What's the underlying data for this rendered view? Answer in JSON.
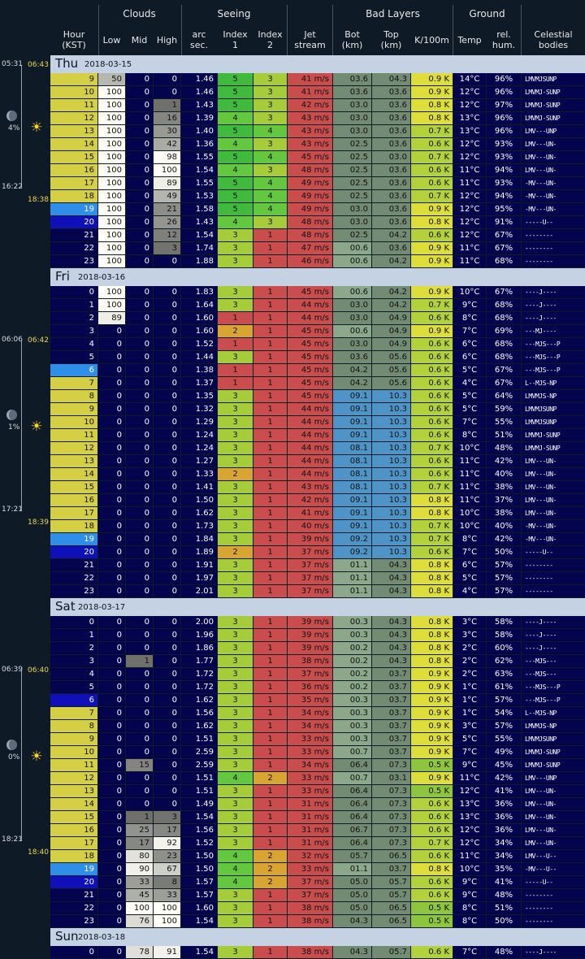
{
  "header": {
    "groups": [
      "Clouds",
      "Seeing",
      "Bad Layers",
      "Ground"
    ],
    "columns": [
      "Hour\n(KST)",
      "Low",
      "Mid",
      "High",
      "arc\nsec.",
      "Index\n1",
      "Index\n2",
      "Jet\nstream",
      "Bot\n(km)",
      "Top\n(km)",
      "K/100m",
      "Temp",
      "rel.\nhum.",
      "Celestial\nbodies"
    ]
  },
  "days": [
    {
      "name": "Thu",
      "date": "2018-03-15",
      "side": {
        "rise": "05:31",
        "sunrise": "06:43",
        "moon_pct": "4%",
        "set": "16:22",
        "sunset": "18:38"
      },
      "rows": [
        [
          "9",
          "50",
          "0",
          "0",
          "1.46",
          "5",
          "3",
          "41 m/s",
          "03.6",
          "04.3",
          "0.9 K",
          "14°C",
          "96%",
          "LMVMJSUNP"
        ],
        [
          "10",
          "100",
          "0",
          "0",
          "1.46",
          "5",
          "3",
          "41 m/s",
          "03.6",
          "03.6",
          "0.9 K",
          "12°C",
          "96%",
          "LMVMJ-SUNP"
        ],
        [
          "11",
          "100",
          "0",
          "1",
          "1.43",
          "5",
          "3",
          "42 m/s",
          "03.0",
          "03.6",
          "0.8 K",
          "12°C",
          "97%",
          "LMVMJ-SUNP"
        ],
        [
          "12",
          "100",
          "0",
          "16",
          "1.39",
          "4",
          "3",
          "43 m/s",
          "03.0",
          "03.6",
          "0.8 K",
          "13°C",
          "96%",
          "LMVMJ-SUNP"
        ],
        [
          "13",
          "100",
          "0",
          "30",
          "1.40",
          "5",
          "4",
          "43 m/s",
          "03.0",
          "03.6",
          "0.7 K",
          "13°C",
          "96%",
          "LMV---UNP"
        ],
        [
          "14",
          "100",
          "0",
          "42",
          "1.36",
          "4",
          "3",
          "43 m/s",
          "02.5",
          "03.6",
          "0.6 K",
          "12°C",
          "93%",
          "LMV---UN-"
        ],
        [
          "15",
          "100",
          "0",
          "98",
          "1.55",
          "5",
          "4",
          "45 m/s",
          "02.5",
          "03.0",
          "0.7 K",
          "12°C",
          "93%",
          "LMV---UN-"
        ],
        [
          "16",
          "100",
          "0",
          "100",
          "1.54",
          "4",
          "3",
          "48 m/s",
          "02.5",
          "03.6",
          "0.6 K",
          "11°C",
          "94%",
          "LMV---UN-"
        ],
        [
          "17",
          "100",
          "0",
          "89",
          "1.55",
          "5",
          "4",
          "49 m/s",
          "02.5",
          "03.6",
          "0.6 K",
          "11°C",
          "93%",
          "-MV---UN-"
        ],
        [
          "18",
          "100",
          "0",
          "49",
          "1.53",
          "5",
          "4",
          "49 m/s",
          "02.5",
          "03.6",
          "0.7 K",
          "12°C",
          "94%",
          "-MV---UN-"
        ],
        [
          "19",
          "100",
          "0",
          "21",
          "1.58",
          "5",
          "4",
          "49 m/s",
          "03.0",
          "03.6",
          "0.9 K",
          "12°C",
          "95%",
          "-MV---UN-"
        ],
        [
          "20",
          "100",
          "0",
          "26",
          "1.43",
          "4",
          "3",
          "48 m/s",
          "03.0",
          "03.6",
          "0.8 K",
          "12°C",
          "91%",
          "-----U--"
        ],
        [
          "21",
          "100",
          "0",
          "12",
          "1.54",
          "3",
          "1",
          "48 m/s",
          "02.5",
          "04.2",
          "0.6 K",
          "12°C",
          "67%",
          "--------"
        ],
        [
          "22",
          "100",
          "0",
          "3",
          "1.74",
          "3",
          "1",
          "47 m/s",
          "00.6",
          "03.6",
          "0.9 K",
          "11°C",
          "67%",
          "--------"
        ],
        [
          "23",
          "100",
          "0",
          "0",
          "1.88",
          "3",
          "1",
          "46 m/s",
          "00.6",
          "04.2",
          "0.9 K",
          "11°C",
          "68%",
          "--------"
        ]
      ]
    },
    {
      "name": "Fri",
      "date": "2018-03-16",
      "side": {
        "rise": "06:06",
        "sunrise": "06:42",
        "moon_pct": "1%",
        "set": "17:21",
        "sunset": "18:39"
      },
      "rows": [
        [
          "0",
          "100",
          "0",
          "0",
          "1.83",
          "3",
          "1",
          "45 m/s",
          "00.6",
          "04.2",
          "0.9 K",
          "10°C",
          "67%",
          "----J----"
        ],
        [
          "1",
          "100",
          "0",
          "0",
          "1.64",
          "3",
          "1",
          "44 m/s",
          "03.0",
          "04.2",
          "0.7 K",
          "9°C",
          "68%",
          "----J----"
        ],
        [
          "2",
          "89",
          "0",
          "0",
          "1.60",
          "1",
          "1",
          "44 m/s",
          "03.0",
          "04.9",
          "0.6 K",
          "8°C",
          "68%",
          "----J----"
        ],
        [
          "3",
          "0",
          "0",
          "0",
          "1.60",
          "2",
          "1",
          "45 m/s",
          "00.6",
          "04.9",
          "0.9 K",
          "7°C",
          "69%",
          "---MJ----"
        ],
        [
          "4",
          "0",
          "0",
          "0",
          "1.52",
          "1",
          "1",
          "45 m/s",
          "03.0",
          "04.9",
          "0.6 K",
          "6°C",
          "68%",
          "---MJS---P"
        ],
        [
          "5",
          "0",
          "0",
          "0",
          "1.44",
          "3",
          "1",
          "45 m/s",
          "03.6",
          "05.6",
          "0.6 K",
          "6°C",
          "68%",
          "---MJS---P"
        ],
        [
          "6",
          "0",
          "0",
          "0",
          "1.38",
          "1",
          "1",
          "45 m/s",
          "04.2",
          "05.6",
          "0.6 K",
          "5°C",
          "67%",
          "---MJS---P"
        ],
        [
          "7",
          "0",
          "0",
          "0",
          "1.37",
          "1",
          "1",
          "45 m/s",
          "04.2",
          "05.6",
          "0.6 K",
          "4°C",
          "67%",
          "L--MJS-NP"
        ],
        [
          "8",
          "0",
          "0",
          "0",
          "1.35",
          "3",
          "1",
          "45 m/s",
          "09.1",
          "10.3",
          "0.6 K",
          "5°C",
          "64%",
          "LMVMJS-NP"
        ],
        [
          "9",
          "0",
          "0",
          "0",
          "1.32",
          "3",
          "1",
          "44 m/s",
          "09.1",
          "10.3",
          "0.6 K",
          "5°C",
          "59%",
          "LMVMJSUNP"
        ],
        [
          "10",
          "0",
          "0",
          "0",
          "1.29",
          "3",
          "1",
          "44 m/s",
          "09.1",
          "10.3",
          "0.6 K",
          "7°C",
          "55%",
          "LMVMJSUNP"
        ],
        [
          "11",
          "0",
          "0",
          "0",
          "1.24",
          "3",
          "1",
          "44 m/s",
          "09.1",
          "10.3",
          "0.6 K",
          "8°C",
          "51%",
          "LMVMJ-SUNP"
        ],
        [
          "12",
          "0",
          "0",
          "0",
          "1.24",
          "3",
          "1",
          "44 m/s",
          "08.1",
          "10.3",
          "0.7 K",
          "10°C",
          "48%",
          "LMVMJ-SUNP"
        ],
        [
          "13",
          "0",
          "0",
          "0",
          "1.27",
          "3",
          "1",
          "44 m/s",
          "08.1",
          "10.3",
          "0.6 K",
          "11°C",
          "42%",
          "LMV---UN-"
        ],
        [
          "14",
          "0",
          "0",
          "0",
          "1.33",
          "2",
          "1",
          "44 m/s",
          "08.1",
          "10.3",
          "0.6 K",
          "11°C",
          "40%",
          "LMV---UN-"
        ],
        [
          "15",
          "0",
          "0",
          "0",
          "1.41",
          "3",
          "1",
          "43 m/s",
          "08.1",
          "10.3",
          "0.7 K",
          "11°C",
          "38%",
          "LMV---UN-"
        ],
        [
          "16",
          "0",
          "0",
          "0",
          "1.50",
          "3",
          "1",
          "42 m/s",
          "09.1",
          "10.3",
          "0.8 K",
          "11°C",
          "37%",
          "LMV---UN-"
        ],
        [
          "17",
          "0",
          "0",
          "0",
          "1.62",
          "3",
          "1",
          "41 m/s",
          "09.1",
          "10.3",
          "0.8 K",
          "10°C",
          "38%",
          "LMV---UN-"
        ],
        [
          "18",
          "0",
          "0",
          "0",
          "1.73",
          "3",
          "1",
          "40 m/s",
          "09.1",
          "10.3",
          "0.7 K",
          "10°C",
          "40%",
          "-MV---UN-"
        ],
        [
          "19",
          "0",
          "0",
          "0",
          "1.84",
          "3",
          "1",
          "39 m/s",
          "09.2",
          "10.3",
          "0.7 K",
          "8°C",
          "42%",
          "-MV---UN-"
        ],
        [
          "20",
          "0",
          "0",
          "0",
          "1.89",
          "2",
          "1",
          "37 m/s",
          "09.2",
          "10.3",
          "0.6 K",
          "7°C",
          "50%",
          "-----U--"
        ],
        [
          "21",
          "0",
          "0",
          "0",
          "1.91",
          "3",
          "1",
          "37 m/s",
          "01.1",
          "04.3",
          "0.8 K",
          "6°C",
          "57%",
          "--------"
        ],
        [
          "22",
          "0",
          "0",
          "0",
          "1.97",
          "3",
          "1",
          "37 m/s",
          "01.1",
          "04.3",
          "0.8 K",
          "5°C",
          "57%",
          "--------"
        ],
        [
          "23",
          "0",
          "0",
          "0",
          "2.01",
          "3",
          "1",
          "37 m/s",
          "01.1",
          "04.3",
          "0.8 K",
          "4°C",
          "57%",
          "--------"
        ]
      ]
    },
    {
      "name": "Sat",
      "date": "2018-03-17",
      "side": {
        "rise": "06:39",
        "sunrise": "06:40",
        "moon_pct": "0%",
        "set": "18:21",
        "sunset": "18:40"
      },
      "rows": [
        [
          "0",
          "0",
          "0",
          "0",
          "2.00",
          "3",
          "1",
          "39 m/s",
          "00.3",
          "04.3",
          "0.8 K",
          "3°C",
          "58%",
          "----J----"
        ],
        [
          "1",
          "0",
          "0",
          "0",
          "1.96",
          "3",
          "1",
          "39 m/s",
          "00.3",
          "04.3",
          "0.8 K",
          "3°C",
          "58%",
          "----J----"
        ],
        [
          "2",
          "0",
          "0",
          "0",
          "1.86",
          "3",
          "1",
          "39 m/s",
          "00.2",
          "04.3",
          "0.8 K",
          "2°C",
          "60%",
          "----J----"
        ],
        [
          "3",
          "0",
          "1",
          "0",
          "1.77",
          "3",
          "1",
          "38 m/s",
          "00.2",
          "04.3",
          "0.8 K",
          "2°C",
          "62%",
          "---MJS---"
        ],
        [
          "4",
          "0",
          "0",
          "0",
          "1.72",
          "3",
          "1",
          "37 m/s",
          "00.2",
          "03.7",
          "0.9 K",
          "2°C",
          "63%",
          "---MJS---"
        ],
        [
          "5",
          "0",
          "0",
          "0",
          "1.72",
          "3",
          "1",
          "36 m/s",
          "00.2",
          "03.7",
          "0.9 K",
          "1°C",
          "61%",
          "---MJS---P"
        ],
        [
          "6",
          "0",
          "0",
          "0",
          "1.62",
          "3",
          "1",
          "35 m/s",
          "00.3",
          "03.7",
          "0.9 K",
          "1°C",
          "57%",
          "---MJS---P"
        ],
        [
          "7",
          "0",
          "0",
          "0",
          "1.56",
          "3",
          "1",
          "34 m/s",
          "00.3",
          "03.7",
          "0.9 K",
          "1°C",
          "54%",
          "L--MJS-NP"
        ],
        [
          "8",
          "0",
          "0",
          "0",
          "1.62",
          "3",
          "1",
          "34 m/s",
          "00.3",
          "03.7",
          "0.9 K",
          "3°C",
          "57%",
          "LMVMJS-NP"
        ],
        [
          "9",
          "0",
          "0",
          "0",
          "1.51",
          "3",
          "1",
          "33 m/s",
          "00.3",
          "03.7",
          "0.9 K",
          "5°C",
          "55%",
          "LMVMJSUNP"
        ],
        [
          "10",
          "0",
          "0",
          "0",
          "2.59",
          "3",
          "1",
          "33 m/s",
          "00.7",
          "03.7",
          "0.9 K",
          "7°C",
          "49%",
          "LMVMJ-SUNP"
        ],
        [
          "11",
          "0",
          "15",
          "0",
          "2.59",
          "3",
          "1",
          "34 m/s",
          "06.4",
          "07.3",
          "0.5 K",
          "9°C",
          "45%",
          "LMVMJ-SUNP"
        ],
        [
          "12",
          "0",
          "0",
          "0",
          "1.51",
          "4",
          "2",
          "33 m/s",
          "00.7",
          "03.1",
          "0.9 K",
          "11°C",
          "42%",
          "LMV---UNP"
        ],
        [
          "13",
          "0",
          "0",
          "0",
          "1.51",
          "3",
          "1",
          "33 m/s",
          "06.4",
          "07.3",
          "0.5 K",
          "12°C",
          "41%",
          "LMV---UN-"
        ],
        [
          "14",
          "0",
          "0",
          "0",
          "1.49",
          "3",
          "1",
          "31 m/s",
          "06.4",
          "07.3",
          "0.6 K",
          "13°C",
          "36%",
          "LMV---UN-"
        ],
        [
          "15",
          "0",
          "1",
          "3",
          "1.54",
          "3",
          "1",
          "31 m/s",
          "06.4",
          "07.3",
          "0.6 K",
          "13°C",
          "36%",
          "LMV---UN-"
        ],
        [
          "16",
          "0",
          "25",
          "17",
          "1.56",
          "3",
          "1",
          "31 m/s",
          "06.7",
          "07.3",
          "0.6 K",
          "12°C",
          "36%",
          "LMV---UN-"
        ],
        [
          "17",
          "0",
          "17",
          "92",
          "1.52",
          "3",
          "1",
          "31 m/s",
          "06.4",
          "07.3",
          "0.7 K",
          "12°C",
          "34%",
          "LMV---UN-"
        ],
        [
          "18",
          "0",
          "80",
          "23",
          "1.50",
          "4",
          "2",
          "32 m/s",
          "05.7",
          "06.5",
          "0.6 K",
          "11°C",
          "34%",
          "LMV---U--"
        ],
        [
          "19",
          "0",
          "90",
          "67",
          "1.50",
          "4",
          "2",
          "33 m/s",
          "01.1",
          "03.7",
          "0.8 K",
          "10°C",
          "35%",
          "-MV---U--"
        ],
        [
          "20",
          "0",
          "33",
          "8",
          "1.57",
          "4",
          "2",
          "37 m/s",
          "05.0",
          "05.7",
          "0.6 K",
          "9°C",
          "41%",
          "-----U--"
        ],
        [
          "21",
          "0",
          "45",
          "33",
          "1.57",
          "3",
          "1",
          "37 m/s",
          "05.0",
          "05.7",
          "0.6 K",
          "9°C",
          "48%",
          "--------"
        ],
        [
          "22",
          "0",
          "100",
          "100",
          "1.60",
          "3",
          "1",
          "38 m/s",
          "05.0",
          "06.5",
          "0.5 K",
          "8°C",
          "51%",
          "--------"
        ],
        [
          "23",
          "0",
          "76",
          "100",
          "1.54",
          "3",
          "1",
          "38 m/s",
          "04.3",
          "06.5",
          "0.5 K",
          "8°C",
          "50%",
          "--------"
        ]
      ]
    },
    {
      "name": "Sun",
      "date": "2018-03-18",
      "rows": [
        [
          "0",
          "0",
          "78",
          "91",
          "1.54",
          "3",
          "1",
          "38 m/s",
          "04.3",
          "05.7",
          "0.6 K",
          "7°C",
          "48%",
          "----J----"
        ]
      ]
    }
  ],
  "colors": {
    "day": "#d4cf45",
    "night": "#03034e",
    "twilight_light": "#2f8fe8",
    "twilight_dark": "#1010b8",
    "index": {
      "1": "#c94d4d",
      "2": "#d9a532",
      "3": "#a7cc3a",
      "4": "#64c83e",
      "5": "#3fba3c"
    },
    "jet": "#c94d4d",
    "layer": {
      "low": "#738a73",
      "mid": "#8ba88a",
      "high": "#4e94c6"
    },
    "k_yellow": "#ddde3c",
    "k_green": "#b3d13c",
    "k_lgreen": "#8fc43e"
  }
}
